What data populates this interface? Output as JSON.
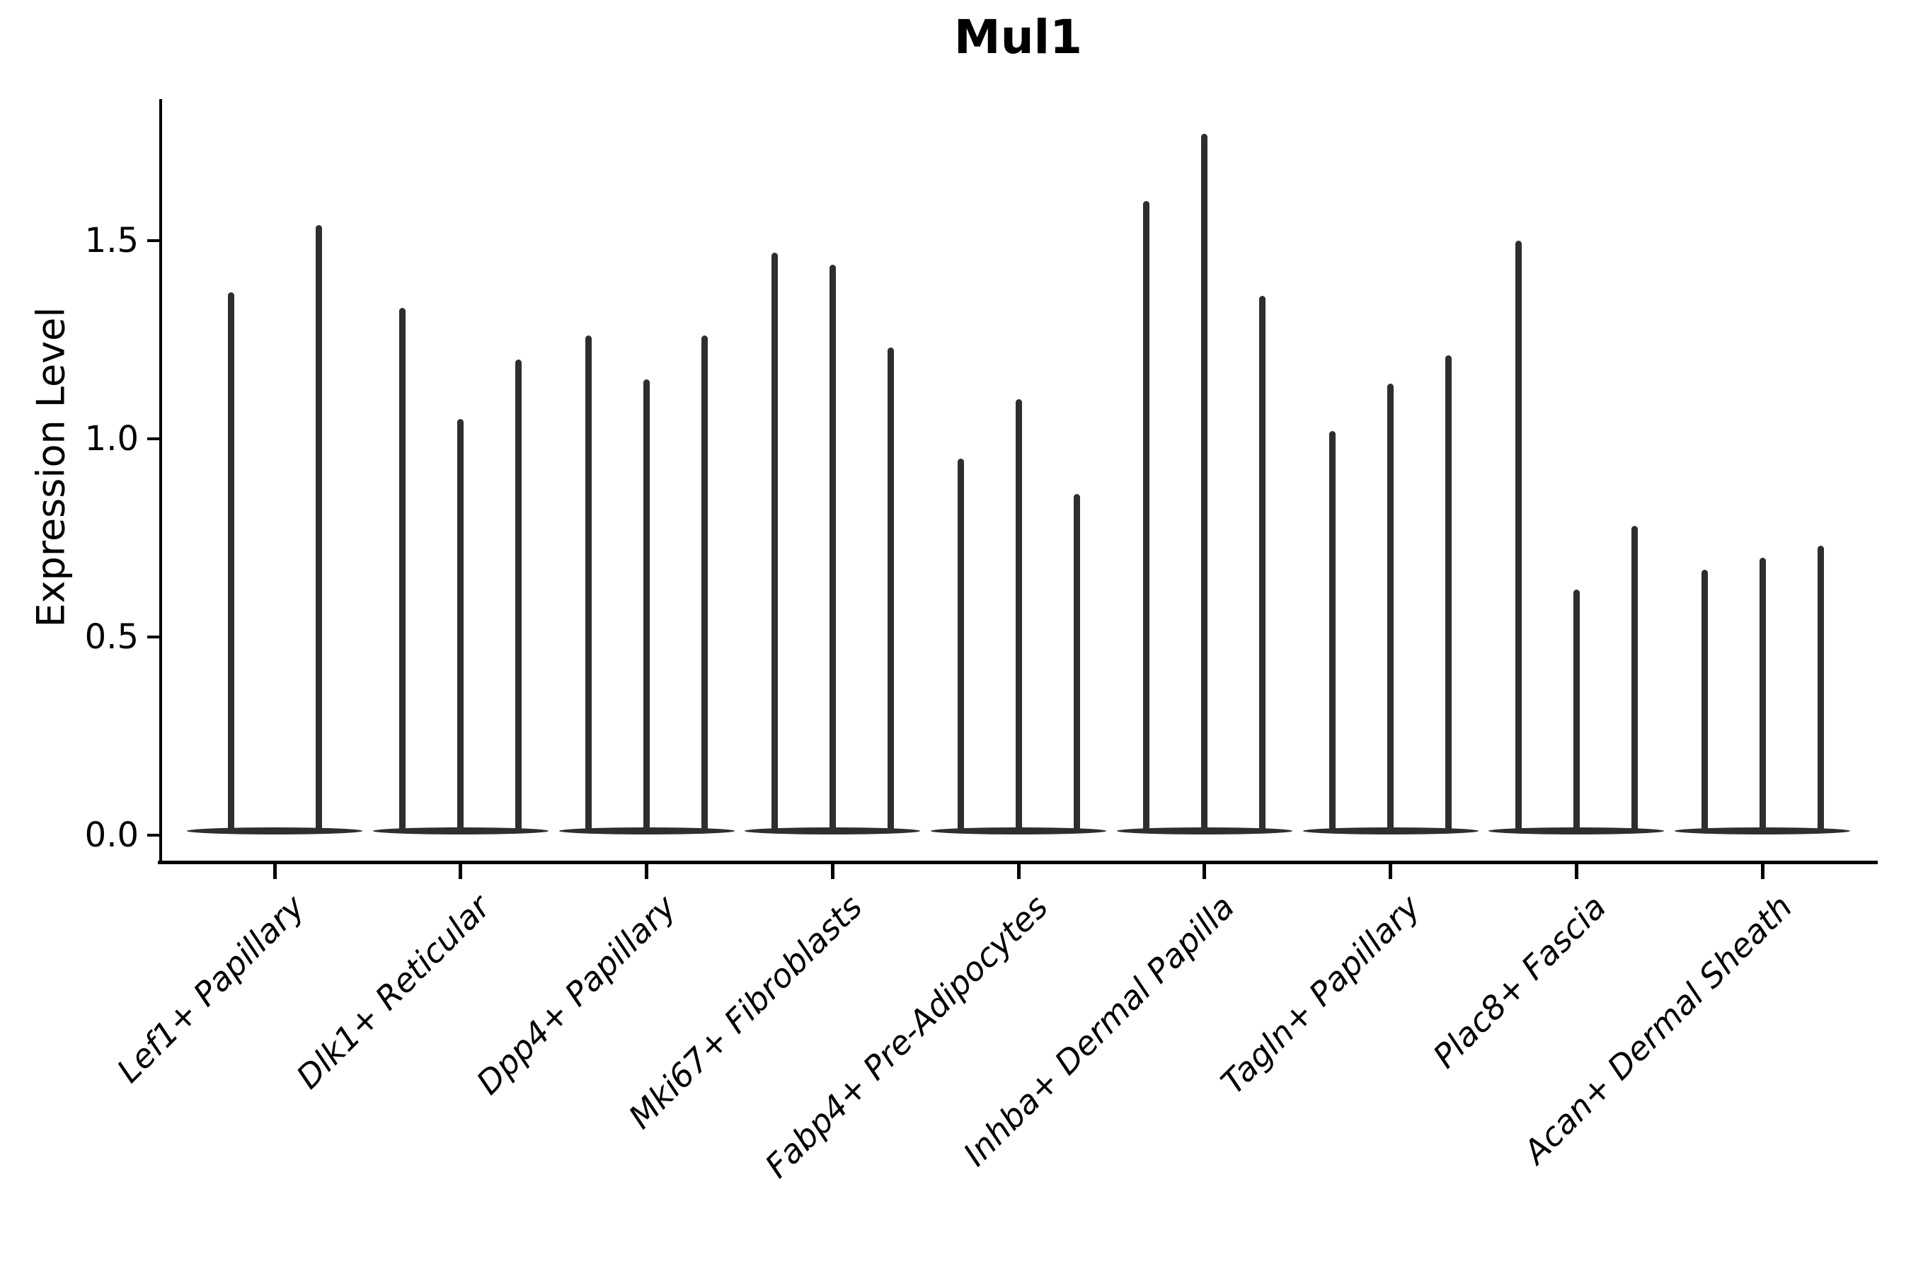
{
  "chart_data": {
    "type": "violin",
    "title": "Mul1",
    "ylabel": "Expression Level",
    "xlabel": "",
    "ylim": [
      0,
      1.85
    ],
    "yticks": [
      "0.0",
      "0.5",
      "1.0",
      "1.5"
    ],
    "ytick_values": [
      0.0,
      0.5,
      1.0,
      1.5
    ],
    "grid": "off",
    "legend": "none",
    "categories": [
      "Lef1+ Papillary",
      "Dlk1+ Reticular",
      "Dpp4+ Papillary",
      "Mki67+ Fibroblasts",
      "Fabp4+ Pre-Adipocytes",
      "Inhba+ Dermal Papilla",
      "Tagln+ Papillary",
      "Plac8+ Fascia",
      "Acan+ Dermal Sheath"
    ],
    "description": "Split violin plot of Mul1 expression; each category shows 2-3 extremely thin violins (density concentrated at 0 with a narrow spike up to the max expression value).",
    "violin_max_values": [
      [
        1.37,
        1.54
      ],
      [
        1.33,
        1.05,
        1.2
      ],
      [
        1.26,
        1.15,
        1.26
      ],
      [
        1.47,
        1.44,
        1.23
      ],
      [
        0.95,
        1.1,
        0.86
      ],
      [
        1.6,
        1.77,
        1.36
      ],
      [
        1.02,
        1.14,
        1.21
      ],
      [
        1.5,
        0.62,
        0.78
      ],
      [
        0.67,
        0.7,
        0.73
      ]
    ],
    "colors": {
      "violin": "#2e2e2e",
      "axis": "#000000",
      "text": "#000000",
      "background": "#ffffff"
    }
  }
}
